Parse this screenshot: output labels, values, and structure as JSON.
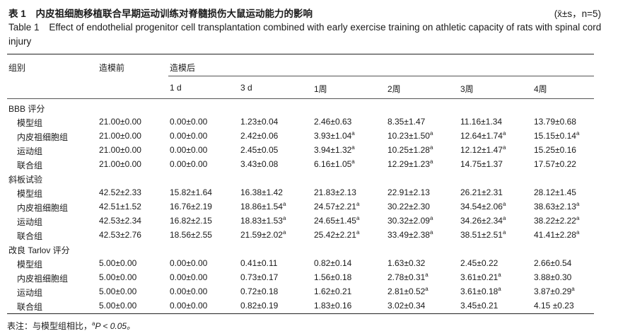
{
  "title_cn": {
    "label": "表 1",
    "text": "内皮祖细胞移植联合早期运动训练对脊髓损伤大鼠运动能力的影响"
  },
  "stat_note": "(x̄±s，n=5)",
  "title_en": {
    "label": "Table 1",
    "text": "Effect of endothelial progenitor cell transplantation combined with early exercise training on athletic capacity of rats with spinal cord injury"
  },
  "header": {
    "group": "组别",
    "before": "造模前",
    "after": "造模后",
    "timepoints": [
      "1 d",
      "3 d",
      "1周",
      "2周",
      "3周",
      "4周"
    ]
  },
  "sections": [
    {
      "title": "BBB 评分",
      "rows": [
        {
          "group": "模型组",
          "values": [
            [
              "21.00±0.00",
              ""
            ],
            [
              "0.00±0.00",
              ""
            ],
            [
              "1.23±0.04",
              ""
            ],
            [
              "2.46±0.63",
              ""
            ],
            [
              "8.35±1.47",
              ""
            ],
            [
              "11.16±1.34",
              ""
            ],
            [
              "13.79±0.68",
              ""
            ]
          ]
        },
        {
          "group": "内皮祖细胞组",
          "values": [
            [
              "21.00±0.00",
              ""
            ],
            [
              "0.00±0.00",
              ""
            ],
            [
              "2.42±0.06",
              ""
            ],
            [
              "3.93±1.04",
              "a"
            ],
            [
              "10.23±1.50",
              "a"
            ],
            [
              "12.64±1.74",
              "a"
            ],
            [
              "15.15±0.14",
              "a"
            ]
          ]
        },
        {
          "group": "运动组",
          "values": [
            [
              "21.00±0.00",
              ""
            ],
            [
              "0.00±0.00",
              ""
            ],
            [
              "2.45±0.05",
              ""
            ],
            [
              "3.94±1.32",
              "a"
            ],
            [
              "10.25±1.28",
              "a"
            ],
            [
              "12.12±1.47",
              "a"
            ],
            [
              "15.25±0.16",
              ""
            ]
          ]
        },
        {
          "group": "联合组",
          "values": [
            [
              "21.00±0.00",
              ""
            ],
            [
              "0.00±0.00",
              ""
            ],
            [
              "3.43±0.08",
              ""
            ],
            [
              "6.16±1.05",
              "a"
            ],
            [
              "12.29±1.23",
              "a"
            ],
            [
              "14.75±1.37",
              ""
            ],
            [
              "17.57±0.22",
              ""
            ]
          ]
        }
      ]
    },
    {
      "title": "斜板试验",
      "rows": [
        {
          "group": "模型组",
          "values": [
            [
              "42.52±2.33",
              ""
            ],
            [
              "15.82±1.64",
              ""
            ],
            [
              "16.38±1.42",
              ""
            ],
            [
              "21.83±2.13",
              ""
            ],
            [
              "22.91±2.13",
              ""
            ],
            [
              "26.21±2.31",
              ""
            ],
            [
              "28.12±1.45",
              ""
            ]
          ]
        },
        {
          "group": "内皮祖细胞组",
          "values": [
            [
              "42.51±1.52",
              ""
            ],
            [
              "16.76±2.19",
              ""
            ],
            [
              "18.86±1.54",
              "a"
            ],
            [
              "24.57±2.21",
              "a"
            ],
            [
              "30.22±2.30",
              ""
            ],
            [
              "34.54±2.06",
              "a"
            ],
            [
              "38.63±2.13",
              "a"
            ]
          ]
        },
        {
          "group": "运动组",
          "values": [
            [
              "42.53±2.34",
              ""
            ],
            [
              "16.82±2.15",
              ""
            ],
            [
              "18.83±1.53",
              "a"
            ],
            [
              "24.65±1.45",
              "a"
            ],
            [
              "30.32±2.09",
              "a"
            ],
            [
              "34.26±2.34",
              "a"
            ],
            [
              "38.22±2.22",
              "a"
            ]
          ]
        },
        {
          "group": "联合组",
          "values": [
            [
              "42.53±2.76",
              ""
            ],
            [
              "18.56±2.55",
              ""
            ],
            [
              "21.59±2.02",
              "a"
            ],
            [
              "25.42±2.21",
              "a"
            ],
            [
              "33.49±2.38",
              "a"
            ],
            [
              "38.51±2.51",
              "a"
            ],
            [
              "41.41±2.28",
              "a"
            ]
          ]
        }
      ]
    },
    {
      "title": "改良 Tarlov 评分",
      "rows": [
        {
          "group": "模型组",
          "values": [
            [
              "5.00±0.00",
              ""
            ],
            [
              "0.00±0.00",
              ""
            ],
            [
              "0.41±0.11",
              ""
            ],
            [
              "0.82±0.14",
              ""
            ],
            [
              "1.63±0.32",
              ""
            ],
            [
              "2.45±0.22",
              ""
            ],
            [
              "2.66±0.54",
              ""
            ]
          ]
        },
        {
          "group": "内皮祖细胞组",
          "values": [
            [
              "5.00±0.00",
              ""
            ],
            [
              "0.00±0.00",
              ""
            ],
            [
              "0.73±0.17",
              ""
            ],
            [
              "1.56±0.18",
              ""
            ],
            [
              "2.78±0.31",
              "a"
            ],
            [
              "3.61±0.21",
              "a"
            ],
            [
              "3.88±0.30",
              ""
            ]
          ]
        },
        {
          "group": "运动组",
          "values": [
            [
              "5.00±0.00",
              ""
            ],
            [
              "0.00±0.00",
              ""
            ],
            [
              "0.72±0.18",
              ""
            ],
            [
              "1.62±0.21",
              ""
            ],
            [
              "2.81±0.52",
              "a"
            ],
            [
              "3.61±0.18",
              "a"
            ],
            [
              "3.87±0.29",
              "a"
            ]
          ]
        },
        {
          "group": "联合组",
          "values": [
            [
              "5.00±0.00",
              ""
            ],
            [
              "0.00±0.00",
              ""
            ],
            [
              "0.82±0.19",
              ""
            ],
            [
              "1.83±0.16",
              ""
            ],
            [
              "3.02±0.34",
              ""
            ],
            [
              "3.45±0.21",
              ""
            ],
            [
              "4.15 ±0.23",
              ""
            ]
          ]
        }
      ]
    }
  ],
  "footnote": {
    "prefix": "表注：与模型组相比，",
    "marker": "a",
    "text": "P < 0.05。"
  }
}
